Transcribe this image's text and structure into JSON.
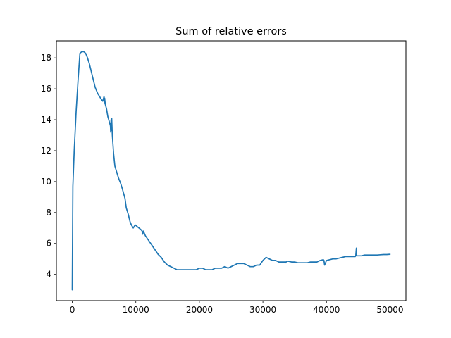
{
  "chart_data": {
    "type": "line",
    "title": "Sum of relative errors",
    "xlabel": "",
    "ylabel": "",
    "xlim": [
      -2500,
      52500
    ],
    "ylim": [
      2.3,
      19.1
    ],
    "xticks": [
      0,
      10000,
      20000,
      30000,
      40000,
      50000
    ],
    "yticks": [
      4,
      6,
      8,
      10,
      12,
      14,
      16,
      18
    ],
    "grid": false,
    "line_color": "#1f77b4",
    "series": [
      {
        "x": [
          0,
          100,
          300,
          600,
          900,
          1200,
          1500,
          1800,
          2100,
          2400,
          2700,
          3000,
          3300,
          3600,
          4000,
          4300,
          4600,
          4800,
          5000,
          5050,
          5100,
          5200,
          5400,
          5600,
          5800,
          6000,
          6050,
          6100,
          6150,
          6200,
          6300,
          6500,
          6700,
          7000,
          7300,
          7600,
          7900,
          8100,
          8300,
          8500,
          8800,
          9100,
          9300,
          9600,
          9900,
          10200,
          10500,
          10800,
          11000,
          11100,
          11200,
          11500,
          12000,
          12500,
          13000,
          13500,
          14000,
          14500,
          15000,
          15500,
          16000,
          16500,
          17000,
          17500,
          18000,
          18500,
          19000,
          19500,
          20000,
          20500,
          21000,
          21500,
          22000,
          22500,
          23000,
          23500,
          24000,
          24500,
          25000,
          25500,
          26000,
          26500,
          27000,
          27500,
          28000,
          28500,
          29000,
          29500,
          30000,
          30500,
          31000,
          31500,
          32000,
          32500,
          33000,
          33500,
          33600,
          33700,
          34000,
          34500,
          35000,
          35500,
          36000,
          36500,
          37000,
          37500,
          38000,
          38500,
          39000,
          39500,
          39600,
          39700,
          40000,
          40500,
          41000,
          41500,
          42000,
          42500,
          43000,
          43500,
          44000,
          44500,
          44600,
          44700,
          44750,
          44800,
          45000,
          45500,
          46000,
          46500,
          47000,
          47500,
          48000,
          48500,
          49000,
          49500,
          50000
        ],
        "y": [
          3.0,
          9.7,
          12.0,
          14.5,
          16.5,
          18.3,
          18.4,
          18.4,
          18.3,
          18.0,
          17.6,
          17.1,
          16.6,
          16.1,
          15.7,
          15.5,
          15.3,
          15.2,
          15.5,
          15.1,
          15.4,
          15.0,
          14.7,
          14.2,
          13.9,
          13.6,
          13.2,
          14.0,
          13.3,
          14.1,
          13.0,
          11.8,
          11.0,
          10.6,
          10.2,
          9.9,
          9.5,
          9.2,
          8.9,
          8.3,
          7.9,
          7.4,
          7.2,
          7.0,
          7.2,
          7.1,
          7.0,
          6.9,
          6.8,
          6.6,
          6.8,
          6.5,
          6.2,
          5.9,
          5.6,
          5.3,
          5.1,
          4.8,
          4.6,
          4.5,
          4.4,
          4.3,
          4.3,
          4.3,
          4.3,
          4.3,
          4.3,
          4.3,
          4.4,
          4.4,
          4.3,
          4.3,
          4.3,
          4.4,
          4.4,
          4.4,
          4.5,
          4.4,
          4.5,
          4.6,
          4.7,
          4.7,
          4.7,
          4.6,
          4.5,
          4.5,
          4.6,
          4.6,
          4.9,
          5.1,
          5.0,
          4.9,
          4.9,
          4.8,
          4.8,
          4.8,
          4.75,
          4.85,
          4.85,
          4.8,
          4.8,
          4.75,
          4.75,
          4.75,
          4.75,
          4.8,
          4.8,
          4.8,
          4.9,
          4.95,
          4.9,
          4.6,
          4.9,
          4.95,
          5.0,
          5.0,
          5.05,
          5.1,
          5.15,
          5.15,
          5.15,
          5.15,
          5.2,
          5.7,
          5.2,
          5.2,
          5.2,
          5.2,
          5.25,
          5.25,
          5.25,
          5.25,
          5.25,
          5.27,
          5.28,
          5.28,
          5.3
        ]
      }
    ]
  }
}
